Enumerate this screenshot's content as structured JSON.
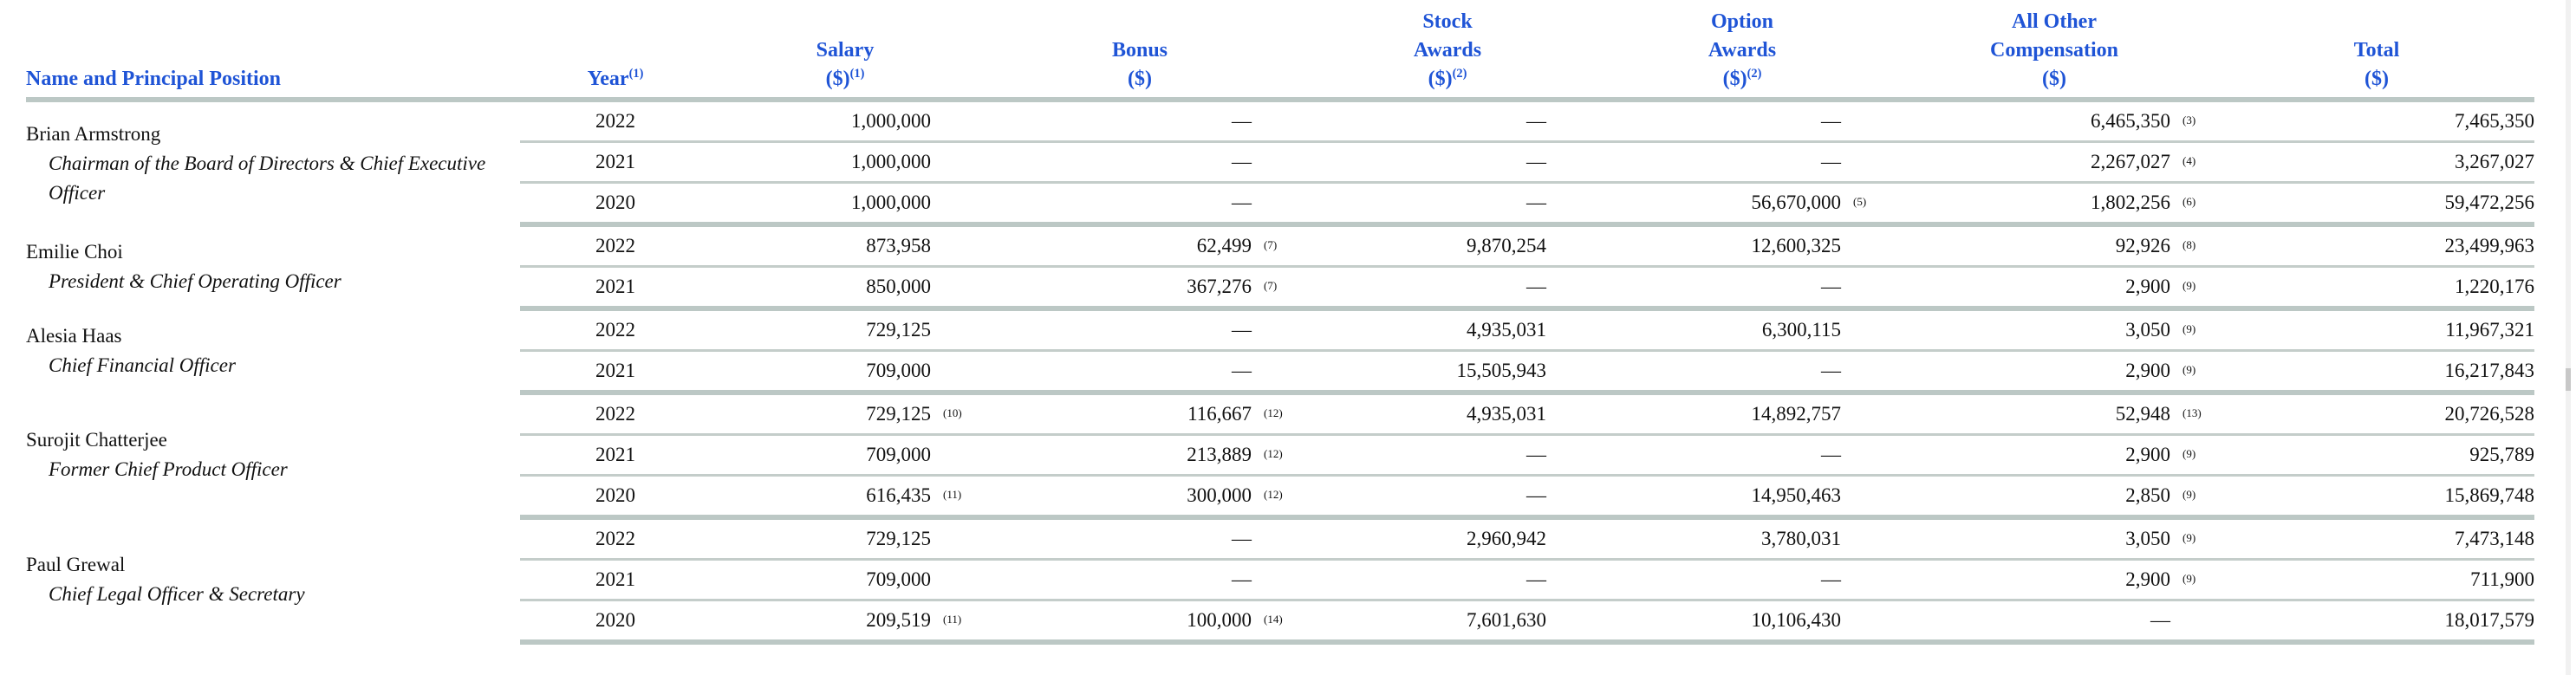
{
  "table": {
    "headers": {
      "name": "Name and Principal Position",
      "year": "Year",
      "year_fn": "(1)",
      "salary_l1": "Salary",
      "salary_l2": "($)",
      "salary_fn": "(1)",
      "bonus_l1": "Bonus",
      "bonus_l2": "($)",
      "stock_l1": "Stock",
      "stock_l2": "Awards",
      "stock_l3": "($)",
      "stock_fn": "(2)",
      "option_l1": "Option",
      "option_l2": "Awards",
      "option_l3": "($)",
      "option_fn": "(2)",
      "other_l1": "All Other",
      "other_l2": "Compensation",
      "other_l3": "($)",
      "total_l1": "Total",
      "total_l2": "($)"
    },
    "executives": [
      {
        "name": "Brian Armstrong",
        "title": "Chairman of the Board of Directors & Chief Executive Officer",
        "rows": [
          {
            "year": "2022",
            "salary": "1,000,000",
            "salary_fn": "",
            "bonus": "—",
            "bonus_fn": "",
            "stock": "—",
            "option": "—",
            "option_fn": "",
            "other": "6,465,350",
            "other_fn": "(3)",
            "total": "7,465,350"
          },
          {
            "year": "2021",
            "salary": "1,000,000",
            "salary_fn": "",
            "bonus": "—",
            "bonus_fn": "",
            "stock": "—",
            "option": "—",
            "option_fn": "",
            "other": "2,267,027",
            "other_fn": "(4)",
            "total": "3,267,027"
          },
          {
            "year": "2020",
            "salary": "1,000,000",
            "salary_fn": "",
            "bonus": "—",
            "bonus_fn": "",
            "stock": "—",
            "option": "56,670,000",
            "option_fn": "(5)",
            "other": "1,802,256",
            "other_fn": "(6)",
            "total": "59,472,256"
          }
        ]
      },
      {
        "name": "Emilie Choi",
        "title": "President & Chief Operating Officer",
        "rows": [
          {
            "year": "2022",
            "salary": "873,958",
            "salary_fn": "",
            "bonus": "62,499",
            "bonus_fn": "(7)",
            "stock": "9,870,254",
            "option": "12,600,325",
            "option_fn": "",
            "other": "92,926",
            "other_fn": "(8)",
            "total": "23,499,963"
          },
          {
            "year": "2021",
            "salary": "850,000",
            "salary_fn": "",
            "bonus": "367,276",
            "bonus_fn": "(7)",
            "stock": "—",
            "option": "—",
            "option_fn": "",
            "other": "2,900",
            "other_fn": "(9)",
            "total": "1,220,176"
          }
        ]
      },
      {
        "name": "Alesia Haas",
        "title": "Chief Financial Officer",
        "rows": [
          {
            "year": "2022",
            "salary": "729,125",
            "salary_fn": "",
            "bonus": "—",
            "bonus_fn": "",
            "stock": "4,935,031",
            "option": "6,300,115",
            "option_fn": "",
            "other": "3,050",
            "other_fn": "(9)",
            "total": "11,967,321"
          },
          {
            "year": "2021",
            "salary": "709,000",
            "salary_fn": "",
            "bonus": "—",
            "bonus_fn": "",
            "stock": "15,505,943",
            "option": "—",
            "option_fn": "",
            "other": "2,900",
            "other_fn": "(9)",
            "total": "16,217,843"
          }
        ]
      },
      {
        "name": "Surojit Chatterjee",
        "title": "Former Chief Product Officer",
        "rows": [
          {
            "year": "2022",
            "salary": "729,125",
            "salary_fn": "(10)",
            "bonus": "116,667",
            "bonus_fn": "(12)",
            "stock": "4,935,031",
            "option": "14,892,757",
            "option_fn": "",
            "other": "52,948",
            "other_fn": "(13)",
            "total": "20,726,528"
          },
          {
            "year": "2021",
            "salary": "709,000",
            "salary_fn": "",
            "bonus": "213,889",
            "bonus_fn": "(12)",
            "stock": "—",
            "option": "—",
            "option_fn": "",
            "other": "2,900",
            "other_fn": "(9)",
            "total": "925,789"
          },
          {
            "year": "2020",
            "salary": "616,435",
            "salary_fn": "(11)",
            "bonus": "300,000",
            "bonus_fn": "(12)",
            "stock": "—",
            "option": "14,950,463",
            "option_fn": "",
            "other": "2,850",
            "other_fn": "(9)",
            "total": "15,869,748"
          }
        ]
      },
      {
        "name": "Paul Grewal",
        "title": "Chief Legal Officer & Secretary",
        "rows": [
          {
            "year": "2022",
            "salary": "729,125",
            "salary_fn": "",
            "bonus": "—",
            "bonus_fn": "",
            "stock": "2,960,942",
            "option": "3,780,031",
            "option_fn": "",
            "other": "3,050",
            "other_fn": "(9)",
            "total": "7,473,148"
          },
          {
            "year": "2021",
            "salary": "709,000",
            "salary_fn": "",
            "bonus": "—",
            "bonus_fn": "",
            "stock": "—",
            "option": "—",
            "option_fn": "",
            "other": "2,900",
            "other_fn": "(9)",
            "total": "711,900"
          },
          {
            "year": "2020",
            "salary": "209,519",
            "salary_fn": "(11)",
            "bonus": "100,000",
            "bonus_fn": "(14)",
            "stock": "7,601,630",
            "option": "10,106,430",
            "option_fn": "",
            "other": "—",
            "other_fn": "",
            "total": "18,017,579"
          }
        ]
      }
    ]
  },
  "colors": {
    "header_text": "#1f54d6",
    "rule_heavy": "#bcc8c5",
    "rule_light": "#c4cdca",
    "body_text": "#111111"
  }
}
